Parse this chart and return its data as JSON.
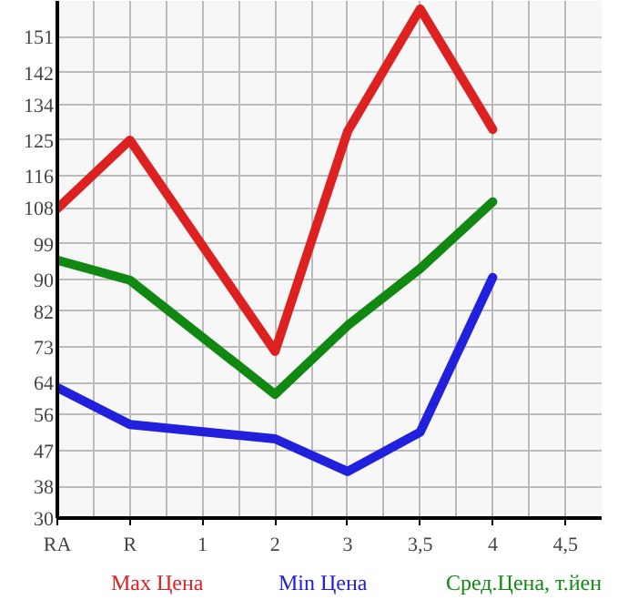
{
  "chart_data": {
    "type": "line",
    "categories": [
      "RA",
      "R",
      "1",
      "2",
      "3",
      "3,5",
      "4",
      "4,5"
    ],
    "series": [
      {
        "name": "Max Цена",
        "color": "#dd2020",
        "values": [
          107.8,
          125,
          null,
          71.9,
          127.2,
          158,
          127.7,
          null
        ]
      },
      {
        "name": "Min Цена",
        "color": "#2020dd",
        "values": [
          62.8,
          53.5,
          null,
          49.9,
          41.7,
          51.6,
          90.5,
          null
        ]
      },
      {
        "name": "Сред.Цена, т.йен",
        "color": "#118811",
        "values": [
          94.8,
          89.8,
          null,
          61.1,
          78.4,
          92.7,
          109.5,
          null
        ]
      }
    ],
    "ylim": [
      30,
      160
    ],
    "yticks": [
      30,
      38,
      47,
      56,
      64,
      73,
      82,
      90,
      99,
      108,
      116,
      125,
      134,
      142,
      151
    ],
    "grid": true,
    "legend": "bottom",
    "line_style": "solid"
  }
}
